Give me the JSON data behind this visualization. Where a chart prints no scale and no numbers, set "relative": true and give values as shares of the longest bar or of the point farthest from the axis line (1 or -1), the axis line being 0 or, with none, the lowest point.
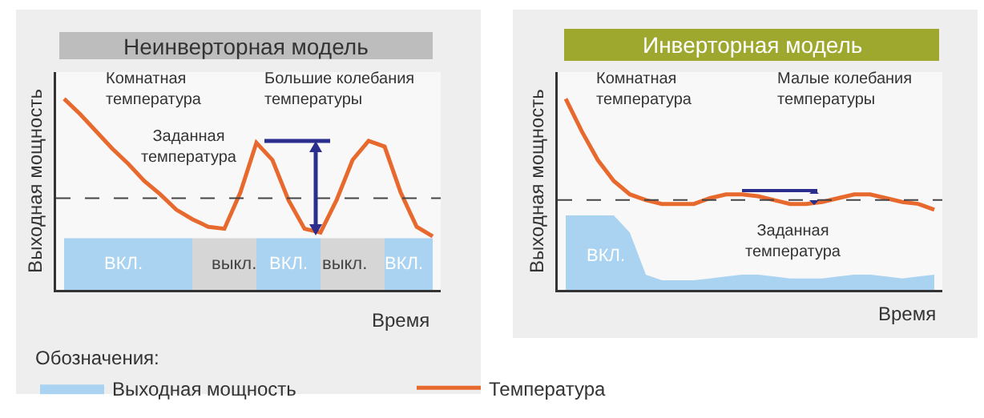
{
  "chart_data": [
    {
      "type": "line",
      "title": "Неинверторная модель",
      "xlabel": "Время",
      "ylabel": "Выходная мощность",
      "legend_title": "Обозначения:",
      "legend": "bottom",
      "relative": true,
      "categories": [
        null,
        null,
        null,
        null,
        null,
        null,
        null,
        null,
        null,
        null,
        null,
        null,
        null,
        null,
        null,
        null,
        null,
        null,
        null,
        null,
        null,
        null,
        null,
        null
      ],
      "series": [
        {
          "name": "Выходная мощность",
          "type": "area",
          "color": "#a9d3f0",
          "values": [
            0.27,
            0.27,
            0.27,
            0.27,
            0.27,
            0.27,
            0.27,
            0.27,
            0.27,
            null,
            null,
            null,
            0.27,
            0.27,
            0.27,
            0.27,
            0.27,
            null,
            null,
            null,
            0.27,
            0.27,
            0.27,
            0.27
          ]
        },
        {
          "type": "area",
          "color": "#d6d6d6",
          "values": [
            null,
            null,
            null,
            null,
            null,
            null,
            null,
            null,
            0.27,
            0.27,
            0.27,
            0.27,
            0.27,
            null,
            null,
            null,
            0.27,
            0.27,
            0.27,
            0.27,
            0.27,
            null,
            null,
            null
          ]
        },
        {
          "name": "Температура",
          "color": "#e8692e",
          "values": [
            1,
            0.92,
            0.83,
            0.74,
            0.66,
            0.57,
            0.5,
            0.42,
            0.37,
            0.33,
            0.32,
            0.51,
            0.77,
            0.68,
            0.47,
            0.32,
            0.3,
            0.47,
            0.68,
            0.78,
            0.75,
            0.51,
            0.33,
            0.28
          ]
        }
      ],
      "ref_lines": [
        {
          "axis": "y",
          "value": 0.48,
          "label": "Заданная\nтемпература",
          "line_style": "dashed",
          "color": "#444444"
        }
      ],
      "annotations": [
        "Комнатная\nтемпература",
        "Большие колебания\nтемпературы",
        "ВКЛ.",
        "выкл.",
        "ВКЛ.",
        "выкл.",
        "ВКЛ."
      ]
    },
    {
      "type": "line",
      "title": "Инверторная модель",
      "xlabel": "Время",
      "ylabel": "Выходная мощность",
      "relative": true,
      "categories": [
        null,
        null,
        null,
        null,
        null,
        null,
        null,
        null,
        null,
        null,
        null,
        null,
        null,
        null,
        null,
        null,
        null,
        null,
        null,
        null,
        null,
        null,
        null,
        null
      ],
      "series": [
        {
          "type": "area",
          "color": "#a9d3f0",
          "values": [
            0.39,
            0.39,
            0.39,
            0.39,
            0.3,
            0.08,
            0.05,
            0.05,
            0.05,
            0.06,
            0.07,
            0.08,
            0.08,
            0.07,
            0.06,
            0.06,
            0.06,
            0.07,
            0.08,
            0.08,
            0.07,
            0.06,
            0.07,
            0.08
          ]
        },
        {
          "color": "#e8692e",
          "values": [
            1,
            0.83,
            0.68,
            0.57,
            0.5,
            0.47,
            0.45,
            0.45,
            0.45,
            0.48,
            0.5,
            0.5,
            0.49,
            0.47,
            0.45,
            0.45,
            0.46,
            0.48,
            0.5,
            0.5,
            0.48,
            0.46,
            0.45,
            0.42
          ]
        }
      ],
      "ref_lines": [
        {
          "axis": "y",
          "value": 0.47,
          "label": "Заданная\nтемпература",
          "line_style": "dashed",
          "color": "#444444"
        }
      ],
      "annotations": [
        "Комнатная\nтемпература",
        "Малые колебания\nтемпературы",
        "ВКЛ."
      ]
    }
  ]
}
